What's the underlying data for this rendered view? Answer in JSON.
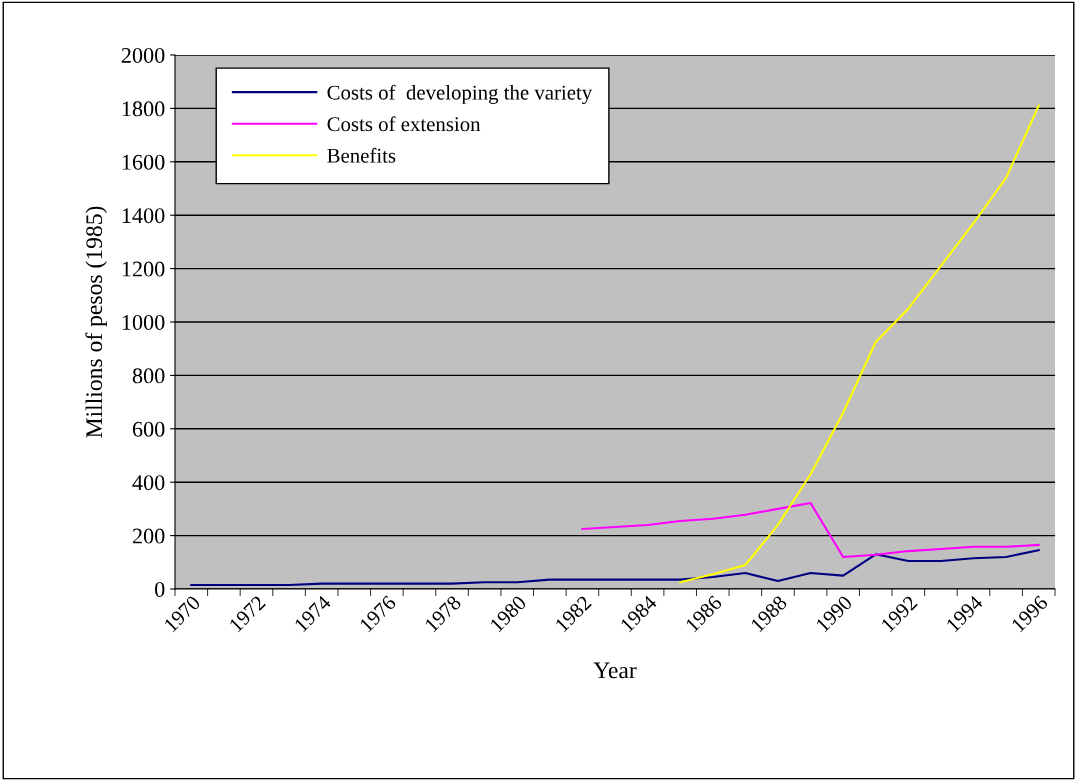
{
  "chart_data": {
    "type": "line",
    "xlabel": "Year",
    "ylabel": "Millions of pesos (1985)",
    "categories": [
      "1970",
      null,
      "1972",
      null,
      "1974",
      null,
      "1976",
      null,
      "1978",
      null,
      "1980",
      null,
      "1982",
      null,
      "1984",
      null,
      "1986",
      null,
      "1988",
      null,
      "1990",
      null,
      "1992",
      null,
      "1994",
      null,
      "1996"
    ],
    "series": [
      {
        "name": "Costs of  developing the variety",
        "color": "#000080",
        "values": [
          15,
          15,
          15,
          15,
          20,
          20,
          20,
          20,
          20,
          25,
          25,
          35,
          35,
          35,
          35,
          35,
          45,
          60,
          30,
          60,
          50,
          130,
          105,
          105,
          115,
          120,
          145
        ]
      },
      {
        "name": "Costs of extension",
        "color": "#ff00ff",
        "values": [
          null,
          null,
          null,
          null,
          null,
          null,
          null,
          null,
          null,
          null,
          null,
          null,
          225,
          232,
          240,
          255,
          263,
          278,
          300,
          322,
          120,
          128,
          142,
          150,
          158,
          158,
          165
        ]
      },
      {
        "name": "Benefits",
        "color": "#ffff00",
        "values": [
          null,
          null,
          null,
          null,
          null,
          null,
          null,
          null,
          null,
          null,
          null,
          null,
          null,
          null,
          null,
          25,
          55,
          90,
          240,
          430,
          660,
          925,
          1050,
          1210,
          1370,
          1540,
          1810
        ]
      }
    ],
    "ylim": [
      0,
      2000
    ],
    "yticks": [
      0,
      200,
      400,
      600,
      800,
      1000,
      1200,
      1400,
      1600,
      1800,
      2000
    ],
    "grid": "y",
    "legend": "top left",
    "marker": "none",
    "line_style": "solid"
  }
}
